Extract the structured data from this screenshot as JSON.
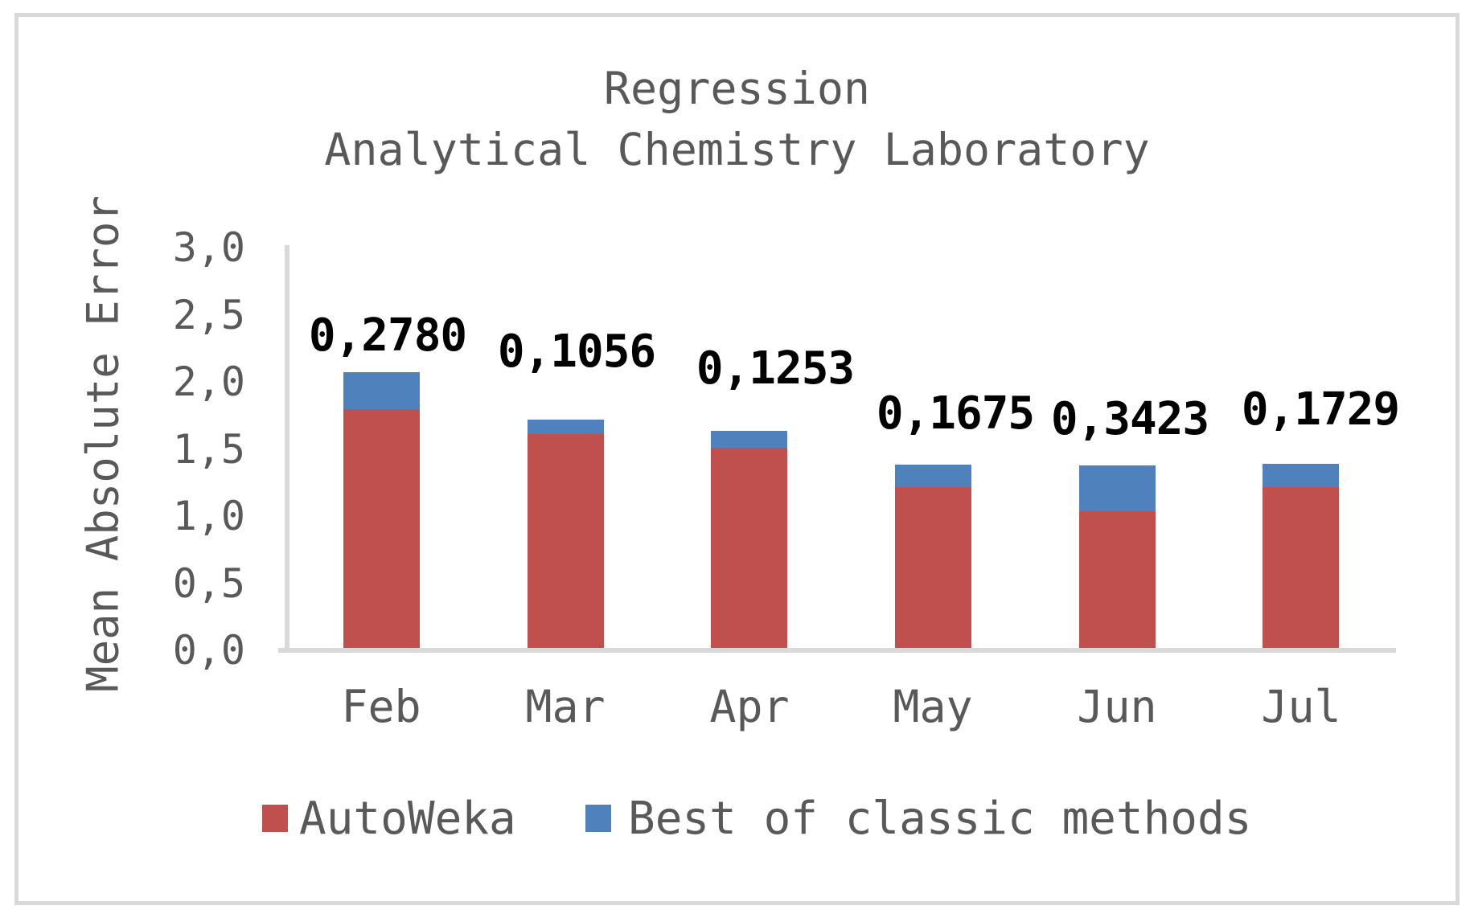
{
  "chart_data": {
    "type": "bar",
    "stacked": true,
    "title": "Regression",
    "subtitle": "Analytical Chemistry Laboratory",
    "ylabel": "Mean Absolute Error",
    "xlabel": "",
    "ylim": [
      0,
      3
    ],
    "yticks": [
      {
        "value": 0.0,
        "label": "0,0"
      },
      {
        "value": 0.5,
        "label": "0,5"
      },
      {
        "value": 1.0,
        "label": "1,0"
      },
      {
        "value": 1.5,
        "label": "1,5"
      },
      {
        "value": 2.0,
        "label": "2,0"
      },
      {
        "value": 2.5,
        "label": "2,5"
      },
      {
        "value": 3.0,
        "label": "3,0"
      }
    ],
    "categories": [
      "Feb",
      "Mar",
      "Apr",
      "May",
      "Jun",
      "Jul"
    ],
    "series": [
      {
        "name": "AutoWeka",
        "color": "#C0504D",
        "values": [
          1.78,
          1.59,
          1.49,
          1.2,
          1.02,
          1.2
        ]
      },
      {
        "name": "Best of classic methods",
        "color": "#4F81BD",
        "values": [
          0.278,
          0.1056,
          0.1253,
          0.1675,
          0.3423,
          0.1729
        ]
      }
    ],
    "data_labels": {
      "labeled_series": "Best of classic methods",
      "position": "above-stack",
      "values": [
        "0,2780",
        "0,1056",
        "0,1253",
        "0,1675",
        "0,3423",
        "0,1729"
      ]
    },
    "legend_position": "bottom",
    "grid": false,
    "decimal_separator": ","
  },
  "colors": {
    "text": "#595959",
    "axis": "#D9D9D9",
    "data_label": "#000000",
    "series_autoweka": "#C0504D",
    "series_best_classic": "#4F81BD",
    "background": "#FFFFFF"
  }
}
